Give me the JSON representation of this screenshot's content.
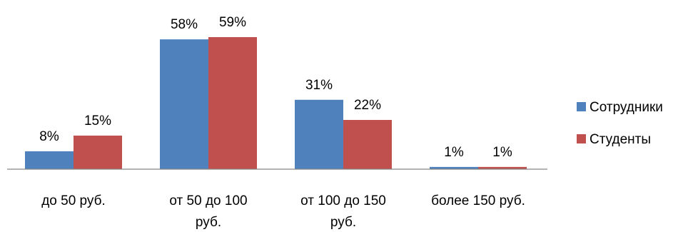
{
  "chart_data": {
    "type": "bar",
    "categories": [
      [
        "до 50 руб."
      ],
      [
        "от 50 до 100",
        "руб."
      ],
      [
        "от 100 до 150",
        "руб."
      ],
      [
        "более 150 руб."
      ]
    ],
    "series": [
      {
        "name": "Сотрудники",
        "values": [
          8,
          58,
          31,
          1
        ],
        "labels": [
          "8%",
          "58%",
          "31%",
          "1%"
        ],
        "color": "#4F81BD"
      },
      {
        "name": "Студенты",
        "values": [
          15,
          59,
          22,
          1
        ],
        "labels": [
          "15%",
          "59%",
          "22%",
          "1%"
        ],
        "color": "#C0504D"
      }
    ],
    "title": "",
    "xlabel": "",
    "ylabel": "",
    "ylim": [
      0,
      59
    ],
    "grid": false,
    "legend_position": "right"
  }
}
